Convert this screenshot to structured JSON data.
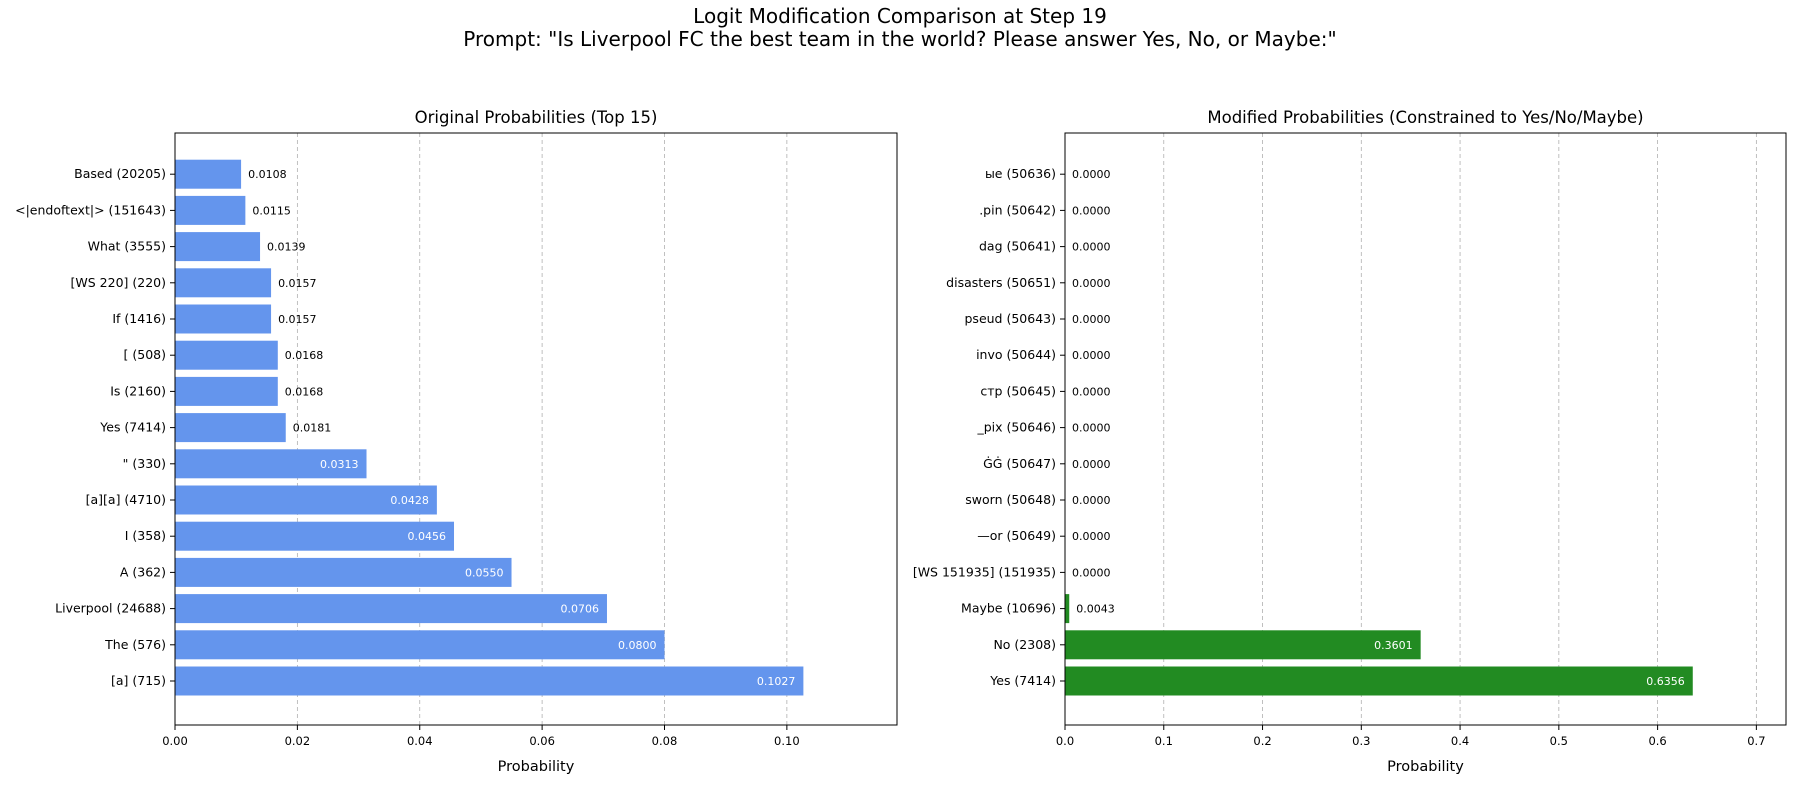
{
  "figure": {
    "title_line1": "Logit Modification Comparison at Step 19",
    "title_line2": "Prompt: \"Is Liverpool FC the best team in the world? Please answer Yes, No, or Maybe:\""
  },
  "chart_data": [
    {
      "type": "bar",
      "orientation": "horizontal",
      "title": "Original Probabilities (Top 15)",
      "xlabel": "Probability",
      "ylabel": "",
      "xlim": [
        0,
        0.118
      ],
      "xticks": [
        0.0,
        0.02,
        0.04,
        0.06,
        0.08,
        0.1
      ],
      "xtick_labels": [
        "0.00",
        "0.02",
        "0.04",
        "0.06",
        "0.08",
        "0.10"
      ],
      "grid": "x-dashed",
      "bar_color": "#6495ED",
      "categories": [
        "[a] (715)",
        "The (576)",
        "Liverpool (24688)",
        "A (362)",
        "I (358)",
        "[a][a] (4710)",
        "\" (330)",
        "Yes (7414)",
        "Is (2160)",
        "[ (508)",
        "If (1416)",
        "[WS 220] (220)",
        "What (3555)",
        "<|endoftext|> (151643)",
        "Based (20205)"
      ],
      "values": [
        0.1027,
        0.08,
        0.0706,
        0.055,
        0.0456,
        0.0428,
        0.0313,
        0.0181,
        0.0168,
        0.0168,
        0.0157,
        0.0157,
        0.0139,
        0.0115,
        0.0108
      ],
      "value_labels": [
        "0.1027",
        "0.0800",
        "0.0706",
        "0.0550",
        "0.0456",
        "0.0428",
        "0.0313",
        "0.0181",
        "0.0168",
        "0.0168",
        "0.0157",
        "0.0157",
        "0.0139",
        "0.0115",
        "0.0108"
      ]
    },
    {
      "type": "bar",
      "orientation": "horizontal",
      "title": "Modified Probabilities (Constrained to Yes/No/Maybe)",
      "xlabel": "Probability",
      "ylabel": "",
      "xlim": [
        0,
        0.73
      ],
      "xticks": [
        0.0,
        0.1,
        0.2,
        0.3,
        0.4,
        0.5,
        0.6,
        0.7
      ],
      "xtick_labels": [
        "0.0",
        "0.1",
        "0.2",
        "0.3",
        "0.4",
        "0.5",
        "0.6",
        "0.7"
      ],
      "grid": "x-dashed",
      "bar_color": "#228B22",
      "categories": [
        "Yes (7414)",
        "No (2308)",
        "Maybe (10696)",
        "[WS 151935] (151935)",
        "—or (50649)",
        "sworn (50648)",
        "ĠĠ (50647)",
        "_pix (50646)",
        "стр (50645)",
        "invo (50644)",
        "pseud (50643)",
        "disasters (50651)",
        "dag (50641)",
        ".pin (50642)",
        "ые (50636)"
      ],
      "values": [
        0.6356,
        0.3601,
        0.0043,
        0,
        0,
        0,
        0,
        0,
        0,
        0,
        0,
        0,
        0,
        0,
        0
      ],
      "value_labels": [
        "0.6356",
        "0.3601",
        "0.0043",
        "0.0000",
        "0.0000",
        "0.0000",
        "0.0000",
        "0.0000",
        "0.0000",
        "0.0000",
        "0.0000",
        "0.0000",
        "0.0000",
        "0.0000",
        "0.0000"
      ]
    }
  ]
}
